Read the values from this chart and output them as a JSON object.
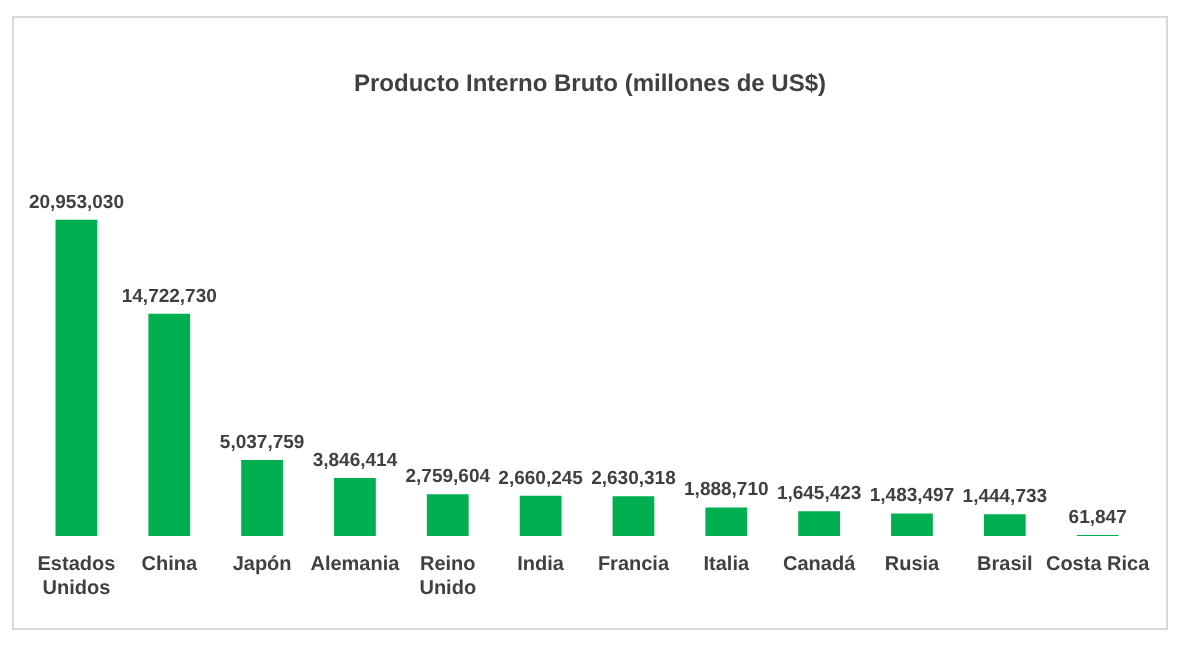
{
  "chart_data": {
    "type": "bar",
    "title": "Producto Interno Bruto (millones de US$)",
    "categories": [
      "Estados Unidos",
      "China",
      "Japón",
      "Alemania",
      "Reino Unido",
      "India",
      "Francia",
      "Italia",
      "Canadá",
      "Rusia",
      "Brasil",
      "Costa Rica"
    ],
    "values": [
      20953030,
      14722730,
      5037759,
      3846414,
      2759604,
      2660245,
      2630318,
      1888710,
      1645423,
      1483497,
      1444733,
      61847
    ],
    "value_labels": [
      "20,953,030",
      "14,722,730",
      "5,037,759",
      "3,846,414",
      "2,759,604",
      "2,660,245",
      "2,630,318",
      "1,888,710",
      "1,645,423",
      "1,483,497",
      "1,444,733",
      "61,847"
    ],
    "color": "#00b050",
    "grid": false,
    "legend": false
  }
}
